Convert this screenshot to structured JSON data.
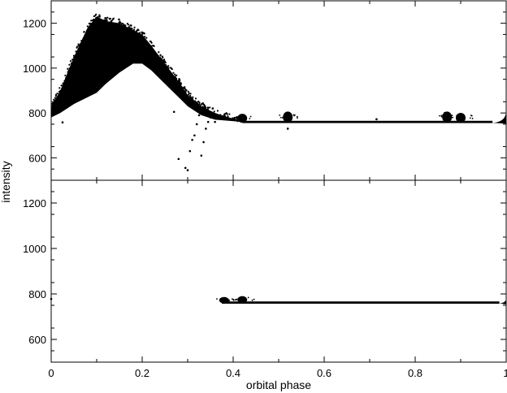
{
  "chart_data": [
    {
      "type": "scatter",
      "panel": "top",
      "ylabel": "intensity",
      "xlim": [
        0,
        1
      ],
      "ylim": [
        500,
        1300
      ],
      "grid": false,
      "xticks": [
        0,
        0.2,
        0.4,
        0.6,
        0.8,
        1
      ],
      "yticks": [
        600,
        800,
        1000,
        1200
      ],
      "ytick_labels": [
        "600",
        "800",
        "1000",
        "1200"
      ],
      "envelope": {
        "x": [
          0.0,
          0.02,
          0.05,
          0.08,
          0.1,
          0.12,
          0.15,
          0.18,
          0.2,
          0.22,
          0.25,
          0.28,
          0.3,
          0.33,
          0.36,
          0.39,
          0.42
        ],
        "upper": [
          830,
          900,
          1050,
          1180,
          1230,
          1210,
          1200,
          1170,
          1150,
          1100,
          1020,
          940,
          880,
          830,
          800,
          780,
          765
        ],
        "lower": [
          780,
          800,
          840,
          870,
          890,
          930,
          980,
          1020,
          1020,
          990,
          930,
          870,
          830,
          790,
          770,
          765,
          760
        ]
      },
      "baseline": {
        "x_range": [
          0.42,
          0.97
        ],
        "value": 760,
        "thickness": 10,
        "bumps": [
          {
            "x": 0.42,
            "y": 780
          },
          {
            "x": 0.52,
            "y": 785
          },
          {
            "x": 0.87,
            "y": 785
          },
          {
            "x": 0.9,
            "y": 782
          }
        ]
      },
      "tail": {
        "x": [
          0.97,
          1.0
        ],
        "y": [
          770,
          810
        ]
      },
      "outliers": [
        {
          "x": 0.025,
          "y": 758
        },
        {
          "x": 0.27,
          "y": 805
        },
        {
          "x": 0.28,
          "y": 595
        },
        {
          "x": 0.295,
          "y": 555
        },
        {
          "x": 0.3,
          "y": 545
        },
        {
          "x": 0.305,
          "y": 630
        },
        {
          "x": 0.31,
          "y": 680
        },
        {
          "x": 0.315,
          "y": 700
        },
        {
          "x": 0.32,
          "y": 750
        },
        {
          "x": 0.325,
          "y": 790
        },
        {
          "x": 0.33,
          "y": 610
        },
        {
          "x": 0.335,
          "y": 670
        },
        {
          "x": 0.34,
          "y": 730
        },
        {
          "x": 0.345,
          "y": 760
        },
        {
          "x": 0.35,
          "y": 780
        },
        {
          "x": 0.355,
          "y": 820
        },
        {
          "x": 0.36,
          "y": 760
        },
        {
          "x": 0.52,
          "y": 730
        },
        {
          "x": 0.715,
          "y": 772
        },
        {
          "x": 0.865,
          "y": 800
        }
      ]
    },
    {
      "type": "scatter",
      "panel": "bottom",
      "xlabel": "orbital phase",
      "xlim": [
        0,
        1
      ],
      "ylim": [
        500,
        1300
      ],
      "grid": false,
      "xticks": [
        0,
        0.2,
        0.4,
        0.6,
        0.8,
        1
      ],
      "xtick_labels": [
        "0",
        "0.2",
        "0.4",
        "0.6",
        "0.8",
        "1"
      ],
      "yticks": [
        600,
        800,
        1000,
        1200
      ],
      "ytick_labels": [
        "600",
        "800",
        "1000",
        "1200"
      ],
      "baseline": {
        "x_range": [
          0.375,
          0.985
        ],
        "value": 762,
        "thickness": 10,
        "bumps": [
          {
            "x": 0.38,
            "y": 776
          },
          {
            "x": 0.42,
            "y": 778
          }
        ]
      },
      "tail": {
        "x": [
          0.985,
          1.0
        ],
        "y": [
          768,
          780
        ]
      },
      "outliers": [
        {
          "x": 0.0,
          "y": 778
        }
      ]
    }
  ]
}
